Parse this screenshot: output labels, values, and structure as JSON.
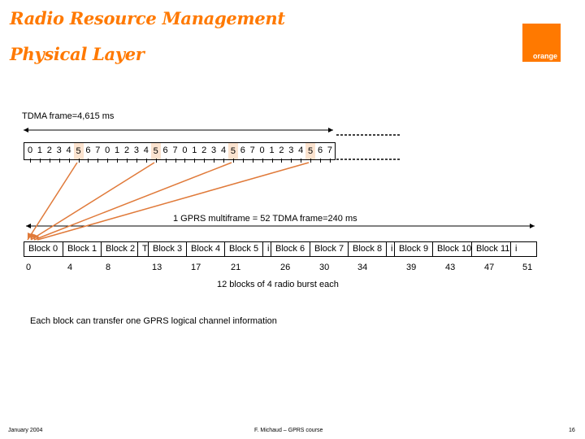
{
  "header": {
    "title_line1": "Radio Resource Management",
    "title_line2": "Physical Layer",
    "logo_text": "orange"
  },
  "diagram": {
    "frame_label": "TDMA frame=4,615 ms",
    "slot_numbers": [
      "0",
      "1",
      "2",
      "3",
      "4",
      "5",
      "6",
      "7",
      "0",
      "1",
      "2",
      "3",
      "4",
      "5",
      "6",
      "7",
      "0",
      "1",
      "2",
      "3",
      "4",
      "5",
      "6",
      "7",
      "0",
      "1",
      "2",
      "3",
      "4",
      "5",
      "6",
      "7"
    ],
    "multiframe_label": "1 GPRS multiframe = 52 TDMA frame=240 ms",
    "blocks": [
      "Block 0",
      "Block 1",
      "Block 2",
      "T",
      "Block 3",
      "Block 4",
      "Block 5",
      "i",
      "Block 6",
      "Block 7",
      "Block 8",
      "i",
      "Block 9",
      "Block 10",
      "Block 11",
      "i"
    ],
    "frame_numbers": [
      "0",
      "4",
      "8",
      "13",
      "17",
      "21",
      "26",
      "30",
      "34",
      "39",
      "43",
      "47",
      "51"
    ],
    "blocks_caption": "12 blocks of 4 radio burst each",
    "note": "Each block can transfer one GPRS logical channel information",
    "highlight_color": "#fbe3cf",
    "arrow_color": "#e07a3a",
    "accent": "#ff7900"
  },
  "footer": {
    "date": "January 2004",
    "author": "F. Michaud – GPRS course",
    "page": "16"
  }
}
